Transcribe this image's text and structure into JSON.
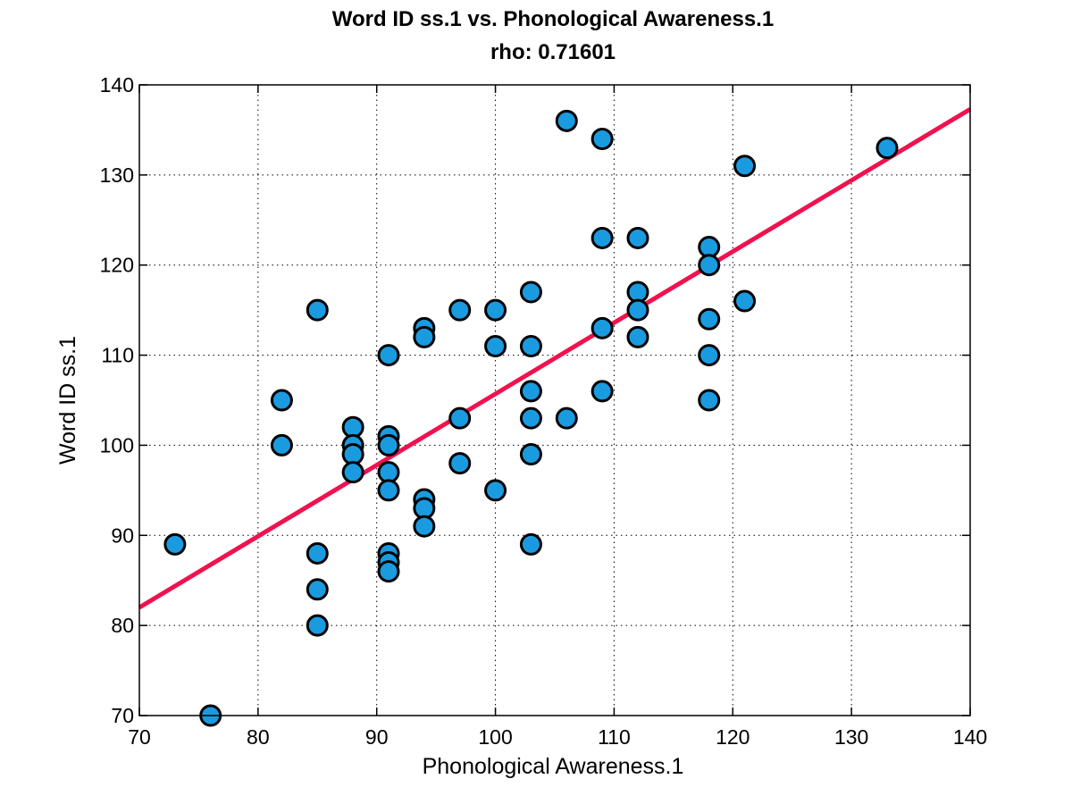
{
  "chart_data": {
    "type": "scatter",
    "title": "Word ID ss.1 vs. Phonological Awareness.1",
    "subtitle": "rho: 0.71601",
    "xlabel": "Phonological Awareness.1",
    "ylabel": "Word ID ss.1",
    "xlim": [
      70,
      140
    ],
    "ylim": [
      70,
      140
    ],
    "xticks": [
      70,
      80,
      90,
      100,
      110,
      120,
      130,
      140
    ],
    "yticks": [
      70,
      80,
      90,
      100,
      110,
      120,
      130,
      140
    ],
    "grid": true,
    "marker_color": "#1a9be0",
    "fit_color": "#f0124f",
    "fit_line": {
      "x": [
        70,
        140
      ],
      "y": [
        82,
        137.3
      ]
    },
    "points": [
      {
        "x": 73,
        "y": 89
      },
      {
        "x": 76,
        "y": 70
      },
      {
        "x": 82,
        "y": 105
      },
      {
        "x": 82,
        "y": 100
      },
      {
        "x": 85,
        "y": 115
      },
      {
        "x": 85,
        "y": 88
      },
      {
        "x": 85,
        "y": 84
      },
      {
        "x": 85,
        "y": 80
      },
      {
        "x": 88,
        "y": 102
      },
      {
        "x": 88,
        "y": 100
      },
      {
        "x": 88,
        "y": 99
      },
      {
        "x": 88,
        "y": 97
      },
      {
        "x": 91,
        "y": 110
      },
      {
        "x": 91,
        "y": 101
      },
      {
        "x": 91,
        "y": 100
      },
      {
        "x": 91,
        "y": 97
      },
      {
        "x": 91,
        "y": 95
      },
      {
        "x": 91,
        "y": 88
      },
      {
        "x": 91,
        "y": 87
      },
      {
        "x": 91,
        "y": 86
      },
      {
        "x": 94,
        "y": 113
      },
      {
        "x": 94,
        "y": 112
      },
      {
        "x": 94,
        "y": 94
      },
      {
        "x": 94,
        "y": 93
      },
      {
        "x": 94,
        "y": 91
      },
      {
        "x": 97,
        "y": 115
      },
      {
        "x": 97,
        "y": 103
      },
      {
        "x": 97,
        "y": 98
      },
      {
        "x": 100,
        "y": 115
      },
      {
        "x": 100,
        "y": 111
      },
      {
        "x": 100,
        "y": 95
      },
      {
        "x": 103,
        "y": 117
      },
      {
        "x": 103,
        "y": 111
      },
      {
        "x": 103,
        "y": 106
      },
      {
        "x": 103,
        "y": 103
      },
      {
        "x": 103,
        "y": 99
      },
      {
        "x": 103,
        "y": 89
      },
      {
        "x": 106,
        "y": 136
      },
      {
        "x": 106,
        "y": 103
      },
      {
        "x": 109,
        "y": 134
      },
      {
        "x": 109,
        "y": 123
      },
      {
        "x": 109,
        "y": 113
      },
      {
        "x": 109,
        "y": 106
      },
      {
        "x": 112,
        "y": 123
      },
      {
        "x": 112,
        "y": 117
      },
      {
        "x": 112,
        "y": 115
      },
      {
        "x": 112,
        "y": 112
      },
      {
        "x": 118,
        "y": 122
      },
      {
        "x": 118,
        "y": 120
      },
      {
        "x": 118,
        "y": 114
      },
      {
        "x": 118,
        "y": 110
      },
      {
        "x": 118,
        "y": 105
      },
      {
        "x": 121,
        "y": 131
      },
      {
        "x": 121,
        "y": 116
      },
      {
        "x": 133,
        "y": 133
      }
    ]
  }
}
